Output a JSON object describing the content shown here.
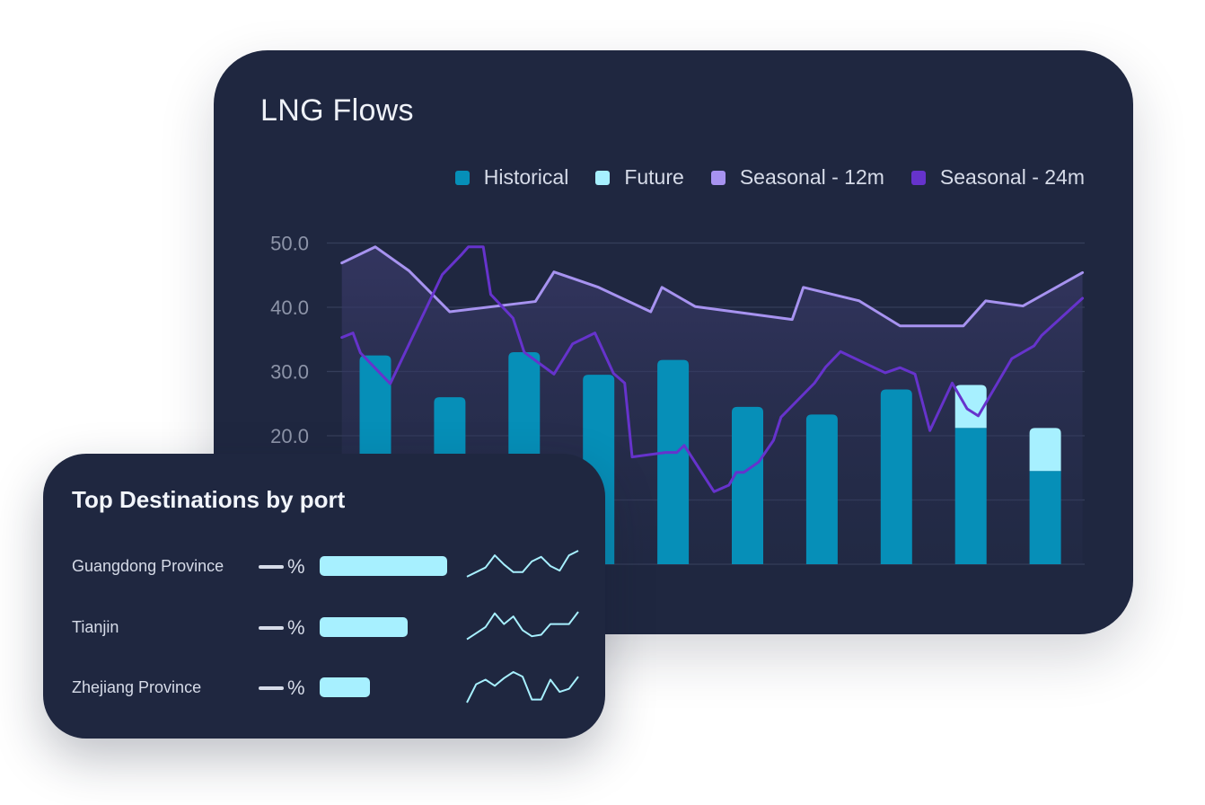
{
  "main_card": {
    "title": "LNG Flows"
  },
  "colors": {
    "historical": "#068fb8",
    "future": "#a7f0ff",
    "seasonal_12m": "#a793f0",
    "seasonal_24m": "#6633cc",
    "grid": "#353e5a",
    "tick_label": "#8d94a8"
  },
  "chart_data": {
    "type": "bar",
    "title": "LNG Flows",
    "legend_position": "top-right",
    "legend": [
      "Historical",
      "Future",
      "Seasonal - 12m",
      "Seasonal - 24m"
    ],
    "y_ticks": [
      "50.0",
      "40.0",
      "30.0",
      "20.0"
    ],
    "ylim": [
      0,
      50
    ],
    "grid": true,
    "bars": {
      "historical": [
        32.5,
        26.0,
        33.0,
        29.5,
        31.8,
        24.5,
        23.3,
        27.2,
        21.2,
        14.5
      ],
      "future": [
        0,
        0,
        0,
        0,
        0,
        0,
        0,
        0,
        6.7,
        6.7
      ]
    },
    "lines": {
      "seasonal_12m": [
        [
          -0.45,
          46.9
        ],
        [
          0,
          49.4
        ],
        [
          0.45,
          45.7
        ],
        [
          1,
          39.3
        ],
        [
          2.15,
          40.9
        ],
        [
          2.4,
          45.5
        ],
        [
          3,
          43.1
        ],
        [
          3.7,
          39.3
        ],
        [
          3.85,
          43.1
        ],
        [
          4.3,
          40.1
        ],
        [
          5.6,
          38.1
        ],
        [
          5.75,
          43.1
        ],
        [
          6.5,
          41.0
        ],
        [
          7.05,
          37.1
        ],
        [
          7.9,
          37.1
        ],
        [
          8.2,
          41.0
        ],
        [
          8.7,
          40.2
        ],
        [
          9.5,
          45.4
        ]
      ],
      "seasonal_24m": [
        [
          -0.45,
          35.3
        ],
        [
          -0.3,
          36.0
        ],
        [
          -0.2,
          32.9
        ],
        [
          0.2,
          28.1
        ],
        [
          0.9,
          45.1
        ],
        [
          1.15,
          48.1
        ],
        [
          1.25,
          49.4
        ],
        [
          1.45,
          49.4
        ],
        [
          1.55,
          42.0
        ],
        [
          1.85,
          38.3
        ],
        [
          2.0,
          33.0
        ],
        [
          2.4,
          29.6
        ],
        [
          2.65,
          34.3
        ],
        [
          2.95,
          36.0
        ],
        [
          3.2,
          29.7
        ],
        [
          3.35,
          28.2
        ],
        [
          3.45,
          16.7
        ],
        [
          3.9,
          17.4
        ],
        [
          4.05,
          17.4
        ],
        [
          4.15,
          18.5
        ],
        [
          4.55,
          11.3
        ],
        [
          4.75,
          12.3
        ],
        [
          4.85,
          14.3
        ],
        [
          4.95,
          14.3
        ],
        [
          5.15,
          15.9
        ],
        [
          5.35,
          19.3
        ],
        [
          5.45,
          22.9
        ],
        [
          5.9,
          28.2
        ],
        [
          6.05,
          30.7
        ],
        [
          6.25,
          33.1
        ],
        [
          6.85,
          29.8
        ],
        [
          7.05,
          30.6
        ],
        [
          7.25,
          29.6
        ],
        [
          7.45,
          20.8
        ],
        [
          7.75,
          28.2
        ],
        [
          7.95,
          24.2
        ],
        [
          8.1,
          23.1
        ],
        [
          8.55,
          32.0
        ],
        [
          8.85,
          34.0
        ],
        [
          8.95,
          35.6
        ],
        [
          9.5,
          41.4
        ]
      ]
    }
  },
  "destinations": {
    "title": "Top Destinations by port",
    "rows": [
      {
        "name": "Guangdong Province",
        "pct": "%",
        "share": 0.58,
        "spark": [
          0.15,
          0.3,
          0.45,
          0.85,
          0.55,
          0.3,
          0.3,
          0.65,
          0.8,
          0.5,
          0.35,
          0.85,
          1.0
        ]
      },
      {
        "name": "Tianjin",
        "pct": "%",
        "share": 0.4,
        "spark": [
          0.1,
          0.3,
          0.5,
          0.95,
          0.6,
          0.85,
          0.4,
          0.2,
          0.25,
          0.6,
          0.6,
          0.6,
          1.0
        ]
      },
      {
        "name": "Zhejiang Province",
        "pct": "%",
        "share": 0.23,
        "spark": [
          0.0,
          0.6,
          0.75,
          0.55,
          0.8,
          1.0,
          0.85,
          0.1,
          0.1,
          0.75,
          0.35,
          0.45,
          0.85
        ]
      }
    ]
  }
}
